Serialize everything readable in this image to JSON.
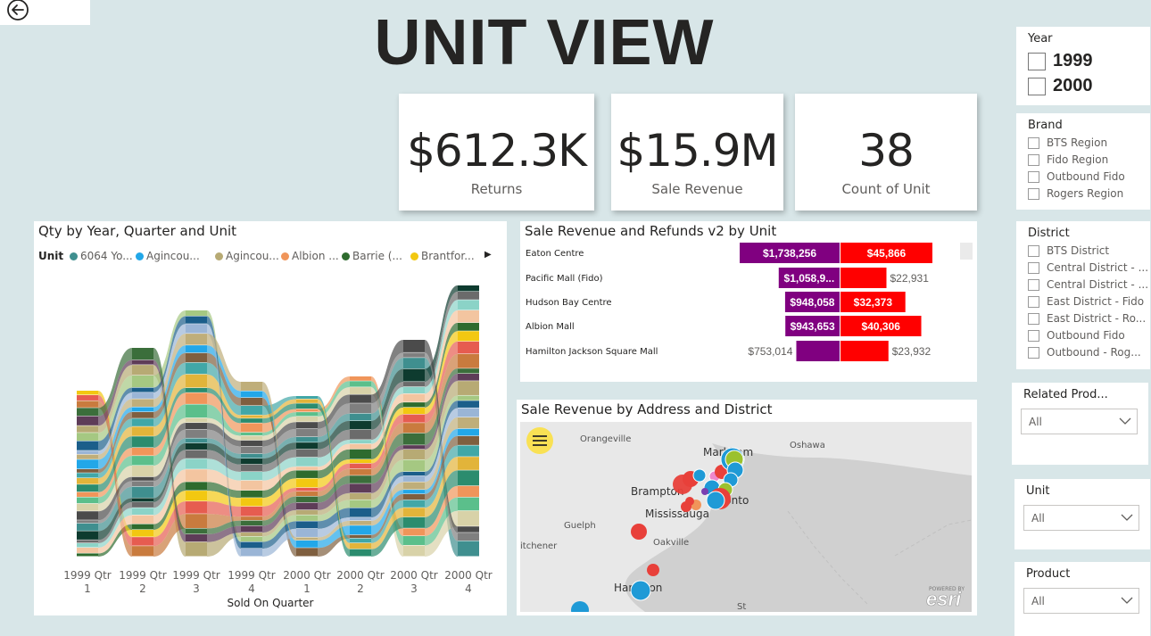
{
  "page": {
    "title": "UNIT VIEW"
  },
  "kpis": [
    {
      "value": "$612.3K",
      "label": "Returns"
    },
    {
      "value": "$15.9M",
      "label": "Sale Revenue"
    },
    {
      "value": "38",
      "label": "Count of Unit"
    }
  ],
  "ribbon": {
    "title": "Qty by Year, Quarter and Unit",
    "legend_title": "Unit",
    "legend": [
      {
        "name": "6064 Yo...",
        "color": "#3f8f8f"
      },
      {
        "name": "Agincou...",
        "color": "#22a7e8"
      },
      {
        "name": "Agincou...",
        "color": "#b7aa74"
      },
      {
        "name": "Albion ...",
        "color": "#f0955a"
      },
      {
        "name": "Barrie (...",
        "color": "#2e6b2e"
      },
      {
        "name": "Brantfor...",
        "color": "#f2c811"
      }
    ],
    "xlabel": "Sold On Quarter",
    "categories_line1": [
      "1999 Qtr",
      "1999 Qtr",
      "1999 Qtr",
      "1999 Qtr",
      "2000 Qtr",
      "2000 Qtr",
      "2000 Qtr",
      "2000 Qtr"
    ],
    "categories_line2": [
      "1",
      "2",
      "3",
      "4",
      "1",
      "2",
      "3",
      "4"
    ]
  },
  "bars": {
    "title": "Sale Revenue and Refunds v2 by Unit",
    "rows": [
      {
        "unit": "Eaton Centre",
        "revenue_label": "$1,738,256",
        "refund_label": "$45,866"
      },
      {
        "unit": "Pacific Mall (Fido)",
        "revenue_label": "$1,058,9...",
        "refund_label": "$22,931"
      },
      {
        "unit": "Hudson Bay Centre",
        "revenue_label": "$948,058",
        "refund_label": "$32,373"
      },
      {
        "unit": "Albion Mall",
        "revenue_label": "$943,653",
        "refund_label": "$40,306"
      },
      {
        "unit": "Hamilton Jackson Square Mall",
        "revenue_label": "$753,014",
        "refund_label": "$23,932"
      }
    ],
    "colors": {
      "revenue": "#800080",
      "refund": "#ff0000"
    }
  },
  "chart_data": {
    "type": "bar",
    "title": "Sale Revenue and Refunds v2 by Unit",
    "categories": [
      "Eaton Centre",
      "Pacific Mall (Fido)",
      "Hudson Bay Centre",
      "Albion Mall",
      "Hamilton Jackson Square Mall"
    ],
    "series": [
      {
        "values": [
          1738256,
          1058900,
          948058,
          943653,
          753014
        ]
      },
      {
        "values": [
          45866,
          22931,
          32373,
          40306,
          23932
        ]
      }
    ]
  },
  "map": {
    "title": "Sale Revenue by Address and District",
    "places": [
      {
        "name": "Orangeville"
      },
      {
        "name": "Markham"
      },
      {
        "name": "Oshawa"
      },
      {
        "name": "Brampton"
      },
      {
        "name": "Toronto"
      },
      {
        "name": "Mississauga"
      },
      {
        "name": "Guelph"
      },
      {
        "name": "Oakville"
      },
      {
        "name": "Kitchener"
      },
      {
        "name": "Hamilton"
      },
      {
        "name": "St"
      }
    ],
    "place_display": {
      "orangeville": "Orangeville",
      "markham": "Markham",
      "oshawa": "Oshawa",
      "brampton": "Brampton",
      "toronto": "Toronto",
      "mississauga": "Mississauga",
      "guelph": "Guelph",
      "oakville": "Oakville",
      "kitchener": "itchener",
      "hamilton": "Hamilton",
      "st": "St"
    },
    "attribution": "esri",
    "attribution_small": "POWERED BY"
  },
  "slicers": {
    "year": {
      "title": "Year",
      "items": [
        "1999",
        "2000"
      ]
    },
    "brand": {
      "title": "Brand",
      "items": [
        "BTS Region",
        "Fido Region",
        "Outbound Fido",
        "Rogers Region"
      ]
    },
    "district": {
      "title": "District",
      "items": [
        "BTS District",
        "Central District - ...",
        "Central District - ...",
        "East District - Fido",
        "East District - Ro...",
        "Outbound Fido",
        "Outbound - Rog..."
      ]
    },
    "related_product": {
      "title": "Related Prod...",
      "value": "All"
    },
    "unit": {
      "title": "Unit",
      "value": "All"
    },
    "product": {
      "title": "Product",
      "value": "All"
    }
  }
}
